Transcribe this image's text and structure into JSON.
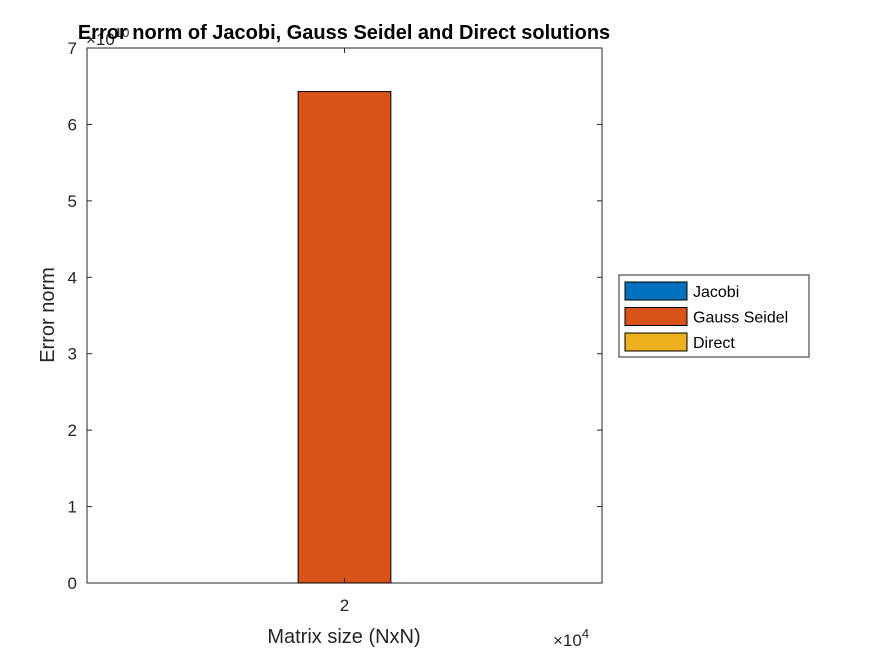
{
  "chart_data": {
    "type": "bar",
    "title": "Error norm of Jacobi, Gauss Seidel and Direct solutions",
    "xlabel": "Matrix size (NxN)",
    "ylabel": "Error norm",
    "categories": [
      20000
    ],
    "x_tick_labels": [
      "2"
    ],
    "x_exponent": {
      "base": "×10",
      "power": "4"
    },
    "y_exponent": {
      "base": "×10",
      "power": "10"
    },
    "ylim": [
      0,
      7
    ],
    "y_ticks": [
      0,
      1,
      2,
      3,
      4,
      5,
      6,
      7
    ],
    "y_tick_labels": [
      "0",
      "1",
      "2",
      "3",
      "4",
      "5",
      "6",
      "7"
    ],
    "grid": false,
    "legend_position": "east-outside",
    "series": [
      {
        "name": "Jacobi",
        "color": "#0072BD",
        "values": [
          0
        ]
      },
      {
        "name": "Gauss Seidel",
        "color": "#D95319",
        "values": [
          6.43
        ]
      },
      {
        "name": "Direct",
        "color": "#EDB120",
        "values": [
          0
        ]
      }
    ]
  }
}
